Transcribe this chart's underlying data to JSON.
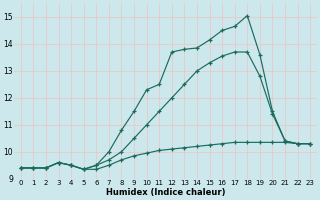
{
  "title": "",
  "xlabel": "Humidex (Indice chaleur)",
  "bg_color": "#cce8ec",
  "grid_color": "#e8c8c8",
  "line_color": "#1a6b5e",
  "xlim": [
    -0.5,
    23.5
  ],
  "ylim": [
    9.0,
    15.5
  ],
  "yticks": [
    9,
    10,
    11,
    12,
    13,
    14,
    15
  ],
  "xticks": [
    0,
    1,
    2,
    3,
    4,
    5,
    6,
    7,
    8,
    9,
    10,
    11,
    12,
    13,
    14,
    15,
    16,
    17,
    18,
    19,
    20,
    21,
    22,
    23
  ],
  "line1_x": [
    0,
    1,
    2,
    3,
    4,
    5,
    6,
    7,
    8,
    9,
    10,
    11,
    12,
    13,
    14,
    15,
    16,
    17,
    18,
    19,
    20,
    21,
    22,
    23
  ],
  "line1_y": [
    9.4,
    9.4,
    9.4,
    9.6,
    9.5,
    9.35,
    9.35,
    9.5,
    9.7,
    9.85,
    9.95,
    10.05,
    10.1,
    10.15,
    10.2,
    10.25,
    10.3,
    10.35,
    10.35,
    10.35,
    10.35,
    10.35,
    10.3,
    10.3
  ],
  "line2_x": [
    0,
    1,
    2,
    3,
    4,
    5,
    6,
    7,
    8,
    9,
    10,
    11,
    12,
    13,
    14,
    15,
    16,
    17,
    18,
    19,
    20,
    21,
    22,
    23
  ],
  "line2_y": [
    9.4,
    9.4,
    9.4,
    9.6,
    9.5,
    9.35,
    9.5,
    9.7,
    10.0,
    10.5,
    11.0,
    11.5,
    12.0,
    12.5,
    13.0,
    13.3,
    13.55,
    13.7,
    13.7,
    12.8,
    11.4,
    10.4,
    10.3,
    10.3
  ],
  "line3_x": [
    0,
    1,
    2,
    3,
    4,
    5,
    6,
    7,
    8,
    9,
    10,
    11,
    12,
    13,
    14,
    15,
    16,
    17,
    18,
    19,
    20,
    21,
    22,
    23
  ],
  "line3_y": [
    9.4,
    9.4,
    9.4,
    9.6,
    9.5,
    9.35,
    9.5,
    10.0,
    10.8,
    11.5,
    12.3,
    12.5,
    13.7,
    13.8,
    13.85,
    14.15,
    14.5,
    14.65,
    15.05,
    13.6,
    11.5,
    10.4,
    10.3,
    10.3
  ]
}
